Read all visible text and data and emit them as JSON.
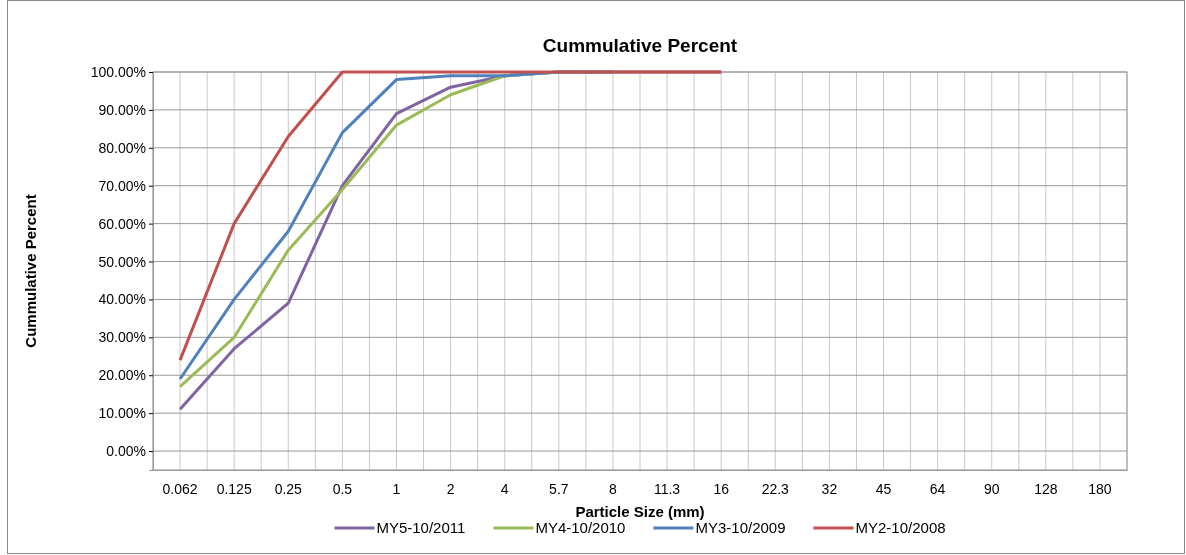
{
  "chart_data": {
    "type": "line",
    "title": "Cummulative Percent",
    "xlabel": "Particle Size (mm)",
    "ylabel": "Cummulative Percent",
    "categories": [
      "0.062",
      "0.125",
      "0.25",
      "0.5",
      "1",
      "2",
      "4",
      "5.7",
      "8",
      "11.3",
      "16",
      "22.3",
      "32",
      "45",
      "64",
      "90",
      "128",
      "180"
    ],
    "series": [
      {
        "name": "MY5-10/2011",
        "color": "#8064a2",
        "values": [
          11,
          27,
          39,
          70,
          89,
          96,
          99,
          100,
          100,
          100,
          100,
          null,
          null,
          null,
          null,
          null,
          null,
          null
        ]
      },
      {
        "name": "MY4-10/2010",
        "color": "#9bbb59",
        "values": [
          17,
          30,
          53,
          69,
          86,
          94,
          99,
          100,
          100,
          null,
          null,
          null,
          null,
          null,
          null,
          null,
          null,
          null
        ]
      },
      {
        "name": "MY3-10/2009",
        "color": "#4f81bd",
        "values": [
          19,
          40,
          58,
          84,
          98,
          99,
          99,
          100,
          100,
          null,
          null,
          null,
          null,
          null,
          null,
          null,
          null,
          null
        ]
      },
      {
        "name": "MY2-10/2008",
        "color": "#c0504d",
        "values": [
          24,
          60,
          83,
          100,
          100,
          100,
          100,
          100,
          100,
          100,
          100,
          null,
          null,
          null,
          null,
          null,
          null,
          null
        ]
      }
    ],
    "ylim": [
      -5,
      100
    ],
    "yticks": [
      {
        "value": 0,
        "label": "0.00%"
      },
      {
        "value": 10,
        "label": "10.00%"
      },
      {
        "value": 20,
        "label": "20.00%"
      },
      {
        "value": 30,
        "label": "30.00%"
      },
      {
        "value": 40,
        "label": "40.00%"
      },
      {
        "value": 50,
        "label": "50.00%"
      },
      {
        "value": 60,
        "label": "60.00%"
      },
      {
        "value": 70,
        "label": "70.00%"
      },
      {
        "value": 80,
        "label": "80.00%"
      },
      {
        "value": 90,
        "label": "90.00%"
      },
      {
        "value": 100,
        "label": "100.00%"
      }
    ],
    "grid": true,
    "legend": "bottom",
    "marker": "none",
    "line_style": "solid"
  }
}
